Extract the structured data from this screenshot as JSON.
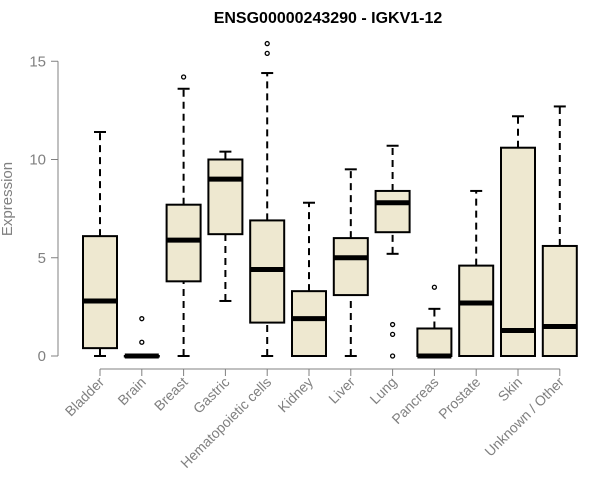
{
  "chart_data": {
    "type": "box",
    "title": "ENSG00000243290 - IGKV1-12",
    "xlabel": "",
    "ylabel": "Expression",
    "ylim": [
      0,
      16
    ],
    "yticks": [
      0,
      5,
      10,
      15
    ],
    "grid": false,
    "box_color": "#EEE8D0",
    "categories": [
      "Bladder",
      "Brain",
      "Breast",
      "Gastric",
      "Hematopoietic cells",
      "Kidney",
      "Liver",
      "Lung",
      "Pancreas",
      "Prostate",
      "Skin",
      "Unknown / Other"
    ],
    "boxes": [
      {
        "min": 0.0,
        "q1": 0.4,
        "median": 2.8,
        "q3": 6.1,
        "max": 11.4,
        "outliers": []
      },
      {
        "min": 0.0,
        "q1": 0.0,
        "median": 0.0,
        "q3": 0.0,
        "max": 0.0,
        "outliers": [
          0.7,
          1.9
        ]
      },
      {
        "min": 0.0,
        "q1": 3.8,
        "median": 5.9,
        "q3": 7.7,
        "max": 13.6,
        "outliers": [
          14.2
        ]
      },
      {
        "min": 2.8,
        "q1": 6.2,
        "median": 9.0,
        "q3": 10.0,
        "max": 10.4,
        "outliers": []
      },
      {
        "min": 0.0,
        "q1": 1.7,
        "median": 4.4,
        "q3": 6.9,
        "max": 14.4,
        "outliers": [
          15.4,
          15.9
        ]
      },
      {
        "min": 0.0,
        "q1": 0.0,
        "median": 1.9,
        "q3": 3.3,
        "max": 7.8,
        "outliers": []
      },
      {
        "min": 0.0,
        "q1": 3.1,
        "median": 5.0,
        "q3": 6.0,
        "max": 9.5,
        "outliers": []
      },
      {
        "min": 5.2,
        "q1": 6.3,
        "median": 7.8,
        "q3": 8.4,
        "max": 10.7,
        "outliers": [
          0.0,
          1.1,
          1.6
        ]
      },
      {
        "min": 0.0,
        "q1": 0.0,
        "median": 0.0,
        "q3": 1.4,
        "max": 2.4,
        "outliers": [
          3.5
        ]
      },
      {
        "min": 0.0,
        "q1": 0.0,
        "median": 2.7,
        "q3": 4.6,
        "max": 8.4,
        "outliers": []
      },
      {
        "min": 0.0,
        "q1": 0.0,
        "median": 1.3,
        "q3": 10.6,
        "max": 12.2,
        "outliers": []
      },
      {
        "min": 0.0,
        "q1": 0.0,
        "median": 1.5,
        "q3": 5.6,
        "max": 12.7,
        "outliers": []
      }
    ]
  }
}
